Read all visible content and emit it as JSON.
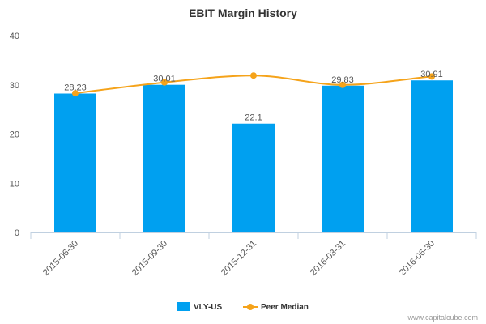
{
  "chart_data": {
    "type": "bar",
    "title": "EBIT Margin History",
    "categories": [
      "2015-06-30",
      "2015-09-30",
      "2015-12-31",
      "2016-03-31",
      "2016-06-30"
    ],
    "series": [
      {
        "name": "VLY-US",
        "type": "bar",
        "values": [
          28.23,
          30.01,
          22.1,
          29.83,
          30.91
        ],
        "color": "#00a0f0",
        "labels": [
          "28.23",
          "30.01",
          "22.1",
          "29.83",
          "30.91"
        ]
      },
      {
        "name": "Peer Median",
        "type": "line",
        "smooth": true,
        "values": [
          28.3,
          30.5,
          31.9,
          30.0,
          31.7
        ],
        "color": "#f5a31a"
      }
    ],
    "ylim": [
      0,
      40
    ],
    "yticks": [
      0,
      10,
      20,
      30,
      40
    ],
    "grid": false,
    "legend_position": "bottom"
  },
  "credit": "www.capitalcube.com"
}
